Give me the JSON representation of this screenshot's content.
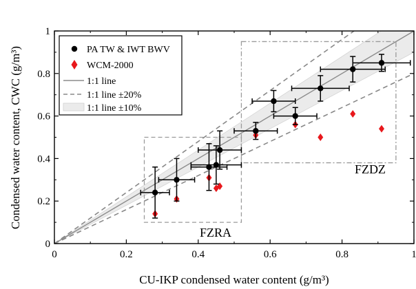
{
  "chart_data": {
    "type": "scatter",
    "xlabel": "CU-IKP condensed water content (g/m³)",
    "ylabel": "Condensed water content, CWC (g/m³)",
    "xlim": [
      0,
      1
    ],
    "ylim": [
      0,
      1
    ],
    "x_ticks": [
      "0",
      "0.2",
      "0.4",
      "0.6",
      "0.8",
      "1"
    ],
    "y_ticks": [
      "0",
      "0.2",
      "0.4",
      "0.6",
      "0.8",
      "1"
    ],
    "grid": false,
    "legend_position": "top-left",
    "series": [
      {
        "name": "PA TW & IWT BWV",
        "marker": "circle",
        "color": "#000000",
        "points": [
          {
            "x": 0.28,
            "y": 0.24,
            "xerr": 0.04,
            "yerr": 0.12
          },
          {
            "x": 0.34,
            "y": 0.3,
            "xerr": 0.05,
            "yerr": 0.1
          },
          {
            "x": 0.43,
            "y": 0.36,
            "xerr": 0.05,
            "yerr": 0.11
          },
          {
            "x": 0.45,
            "y": 0.37,
            "xerr": 0.07,
            "yerr": 0.09
          },
          {
            "x": 0.46,
            "y": 0.44,
            "xerr": 0.06,
            "yerr": 0.09
          },
          {
            "x": 0.56,
            "y": 0.53,
            "xerr": 0.06,
            "yerr": 0.04
          },
          {
            "x": 0.61,
            "y": 0.67,
            "xerr": 0.06,
            "yerr": 0.05
          },
          {
            "x": 0.67,
            "y": 0.6,
            "xerr": 0.06,
            "yerr": 0.04
          },
          {
            "x": 0.74,
            "y": 0.73,
            "xerr": 0.08,
            "yerr": 0.06
          },
          {
            "x": 0.83,
            "y": 0.82,
            "xerr": 0.09,
            "yerr": 0.06
          },
          {
            "x": 0.91,
            "y": 0.85,
            "xerr": 0.08,
            "yerr": 0.04
          }
        ]
      },
      {
        "name": "WCM-2000",
        "marker": "diamond",
        "color": "#e8181c",
        "points": [
          {
            "x": 0.28,
            "y": 0.14
          },
          {
            "x": 0.34,
            "y": 0.21
          },
          {
            "x": 0.43,
            "y": 0.31
          },
          {
            "x": 0.45,
            "y": 0.26
          },
          {
            "x": 0.46,
            "y": 0.27
          },
          {
            "x": 0.56,
            "y": 0.51
          },
          {
            "x": 0.67,
            "y": 0.56
          },
          {
            "x": 0.74,
            "y": 0.5
          },
          {
            "x": 0.83,
            "y": 0.61
          },
          {
            "x": 0.91,
            "y": 0.54
          }
        ]
      }
    ],
    "reference": {
      "line_label": "1:1 line",
      "band20_label": "1:1 line ±20%",
      "band10_label": "1:1 line ±10%",
      "band20": 0.2,
      "band10": 0.1
    },
    "regions": [
      {
        "label": "FZRA",
        "x": [
          0.25,
          0.52
        ],
        "y": [
          0.1,
          0.5
        ]
      },
      {
        "label": "FZDZ",
        "x": [
          0.52,
          0.95
        ],
        "y": [
          0.38,
          0.95
        ]
      }
    ],
    "colors": {
      "band10_fill": "#ebebeb",
      "band_line": "#888888",
      "box_line": "#9a9a9a",
      "one_to_one": "#8c8c8c"
    }
  }
}
